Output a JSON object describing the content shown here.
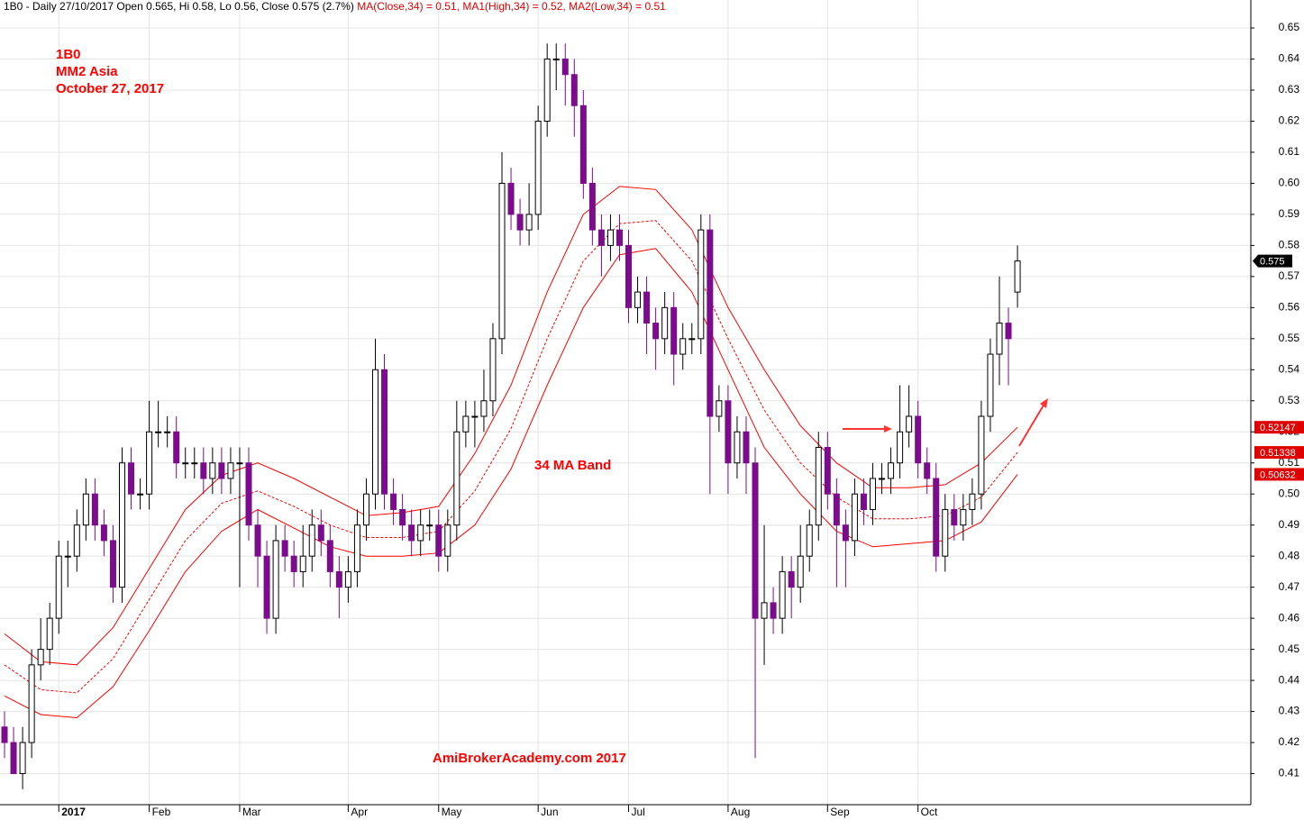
{
  "chart_data": {
    "type": "candlestick",
    "header": [
      "1B0 - Daily 27/10/2017 Open 0.565, Hi 0.58, Lo 0.56, Close 0.575 (2.7%)",
      "MA(Close,34) = 0.51,",
      "MA1(High,34) = 0.52,",
      "MA2(Low,34) = 0.51"
    ],
    "annotations": [
      "1B0",
      "MM2 Asia",
      "October 27, 2017",
      "34 MA Band",
      "AmiBrokerAcademy.com  2017"
    ],
    "xlim": [
      -0.5,
      137.8
    ],
    "xticks": [
      {
        "value": 6,
        "label": "2017"
      },
      {
        "value": 16,
        "label": "Feb"
      },
      {
        "value": 26,
        "label": "Mar"
      },
      {
        "value": 38,
        "label": "Apr"
      },
      {
        "value": 48,
        "label": "May"
      },
      {
        "value": 59,
        "label": "Jun"
      },
      {
        "value": 69,
        "label": "Jul"
      },
      {
        "value": 80,
        "label": "Aug"
      },
      {
        "value": 91,
        "label": "Sep"
      },
      {
        "value": 101,
        "label": "Oct"
      }
    ],
    "ylim": [
      0.4,
      0.659
    ],
    "yticks": [
      0.41,
      0.42,
      0.43,
      0.44,
      0.45,
      0.46,
      0.47,
      0.48,
      0.49,
      {
        "value": 0.5,
        "label": "0.50"
      },
      0.51,
      0.52,
      0.53,
      0.54,
      0.55,
      0.56,
      0.57,
      0.58,
      0.59,
      {
        "value": 0.6,
        "label": "0.60"
      },
      0.61,
      0.62,
      0.63,
      0.64,
      0.65
    ],
    "grid": true,
    "up_color": "#000000",
    "down_color": "#7b0c8c",
    "ohlc": {
      "open": [
        0.425,
        0.42,
        0.41,
        0.42,
        0.445,
        0.45,
        0.46,
        0.48,
        0.48,
        0.49,
        0.5,
        0.49,
        0.485,
        0.47,
        0.51,
        0.5,
        0.5,
        0.52,
        0.52,
        0.52,
        0.51,
        0.51,
        0.51,
        0.505,
        0.51,
        0.505,
        0.51,
        0.51,
        0.49,
        0.48,
        0.46,
        0.485,
        0.48,
        0.475,
        0.48,
        0.49,
        0.485,
        0.475,
        0.47,
        0.475,
        0.49,
        0.5,
        0.54,
        0.5,
        0.495,
        0.49,
        0.485,
        0.49,
        0.49,
        0.48,
        0.49,
        0.52,
        0.525,
        0.525,
        0.53,
        0.55,
        0.6,
        0.59,
        0.585,
        0.59,
        0.62,
        0.64,
        0.64,
        0.635,
        0.625,
        0.6,
        0.585,
        0.58,
        0.585,
        0.58,
        0.56,
        0.565,
        0.555,
        0.55,
        0.56,
        0.545,
        0.55,
        0.55,
        0.585,
        0.525,
        0.53,
        0.51,
        0.52,
        0.51,
        0.46,
        0.465,
        0.46,
        0.475,
        0.47,
        0.48,
        0.49,
        0.515,
        0.5,
        0.49,
        0.485,
        0.5,
        0.495,
        0.505,
        0.505,
        0.51,
        0.52,
        0.525,
        0.51,
        0.505,
        0.48,
        0.495,
        0.49,
        0.495,
        0.5,
        0.525,
        0.545,
        0.555,
        0.565
      ],
      "high": [
        0.43,
        0.425,
        0.425,
        0.45,
        0.46,
        0.465,
        0.485,
        0.485,
        0.495,
        0.505,
        0.505,
        0.495,
        0.49,
        0.515,
        0.515,
        0.505,
        0.53,
        0.53,
        0.525,
        0.525,
        0.515,
        0.515,
        0.515,
        0.515,
        0.515,
        0.515,
        0.515,
        0.515,
        0.495,
        0.485,
        0.49,
        0.49,
        0.485,
        0.49,
        0.495,
        0.495,
        0.49,
        0.48,
        0.48,
        0.495,
        0.505,
        0.55,
        0.545,
        0.505,
        0.5,
        0.495,
        0.495,
        0.495,
        0.495,
        0.495,
        0.53,
        0.53,
        0.53,
        0.54,
        0.555,
        0.61,
        0.605,
        0.595,
        0.6,
        0.625,
        0.645,
        0.645,
        0.645,
        0.64,
        0.63,
        0.605,
        0.59,
        0.59,
        0.59,
        0.585,
        0.57,
        0.57,
        0.56,
        0.565,
        0.565,
        0.555,
        0.555,
        0.59,
        0.59,
        0.535,
        0.535,
        0.525,
        0.525,
        0.515,
        0.49,
        0.47,
        0.48,
        0.48,
        0.49,
        0.495,
        0.52,
        0.52,
        0.505,
        0.495,
        0.505,
        0.505,
        0.51,
        0.51,
        0.515,
        0.535,
        0.535,
        0.53,
        0.515,
        0.51,
        0.5,
        0.5,
        0.5,
        0.505,
        0.53,
        0.55,
        0.57,
        0.56,
        0.58
      ],
      "low": [
        0.415,
        0.41,
        0.405,
        0.415,
        0.44,
        0.445,
        0.455,
        0.47,
        0.475,
        0.485,
        0.485,
        0.48,
        0.465,
        0.465,
        0.495,
        0.495,
        0.495,
        0.515,
        0.515,
        0.505,
        0.505,
        0.505,
        0.5,
        0.5,
        0.5,
        0.5,
        0.47,
        0.485,
        0.47,
        0.455,
        0.455,
        0.475,
        0.47,
        0.47,
        0.475,
        0.48,
        0.47,
        0.46,
        0.465,
        0.47,
        0.485,
        0.495,
        0.495,
        0.49,
        0.485,
        0.48,
        0.48,
        0.485,
        0.475,
        0.475,
        0.485,
        0.515,
        0.515,
        0.52,
        0.525,
        0.545,
        0.585,
        0.58,
        0.58,
        0.585,
        0.615,
        0.63,
        0.625,
        0.615,
        0.595,
        0.58,
        0.57,
        0.575,
        0.575,
        0.555,
        0.555,
        0.545,
        0.54,
        0.545,
        0.535,
        0.54,
        0.545,
        0.545,
        0.5,
        0.52,
        0.5,
        0.505,
        0.5,
        0.415,
        0.445,
        0.455,
        0.455,
        0.46,
        0.465,
        0.475,
        0.485,
        0.495,
        0.47,
        0.47,
        0.48,
        0.49,
        0.49,
        0.5,
        0.5,
        0.505,
        0.515,
        0.505,
        0.5,
        0.475,
        0.475,
        0.485,
        0.485,
        0.49,
        0.495,
        0.52,
        0.535,
        0.535,
        0.56
      ],
      "close": [
        0.42,
        0.41,
        0.42,
        0.445,
        0.45,
        0.46,
        0.48,
        0.48,
        0.49,
        0.5,
        0.49,
        0.485,
        0.47,
        0.51,
        0.5,
        0.5,
        0.52,
        0.52,
        0.52,
        0.51,
        0.51,
        0.51,
        0.505,
        0.51,
        0.505,
        0.51,
        0.51,
        0.49,
        0.48,
        0.46,
        0.485,
        0.48,
        0.475,
        0.48,
        0.49,
        0.485,
        0.475,
        0.47,
        0.475,
        0.49,
        0.5,
        0.54,
        0.5,
        0.495,
        0.49,
        0.485,
        0.49,
        0.49,
        0.48,
        0.49,
        0.52,
        0.525,
        0.525,
        0.53,
        0.55,
        0.6,
        0.59,
        0.585,
        0.59,
        0.62,
        0.64,
        0.64,
        0.635,
        0.625,
        0.6,
        0.585,
        0.58,
        0.585,
        0.58,
        0.56,
        0.565,
        0.555,
        0.55,
        0.56,
        0.545,
        0.55,
        0.55,
        0.585,
        0.525,
        0.53,
        0.51,
        0.52,
        0.51,
        0.46,
        0.465,
        0.46,
        0.475,
        0.47,
        0.48,
        0.49,
        0.515,
        0.5,
        0.49,
        0.485,
        0.5,
        0.495,
        0.505,
        0.505,
        0.51,
        0.52,
        0.525,
        0.51,
        0.505,
        0.48,
        0.495,
        0.49,
        0.495,
        0.5,
        0.525,
        0.545,
        0.555,
        0.55,
        0.575
      ],
      "last_label": "0.575"
    },
    "ma_x": [
      0,
      4,
      8,
      12,
      16,
      20,
      24,
      28,
      32,
      36,
      40,
      44,
      48,
      52,
      56,
      60,
      64,
      68,
      72,
      76,
      80,
      84,
      88,
      92,
      96,
      100,
      104,
      108,
      112
    ],
    "series": [
      {
        "color": "#ff0000",
        "dashed": false,
        "last_label": "0.52147",
        "values": [
          0.455,
          0.446,
          0.445,
          0.457,
          0.476,
          0.495,
          0.506,
          0.51,
          0.505,
          0.499,
          0.493,
          0.494,
          0.496,
          0.513,
          0.535,
          0.565,
          0.59,
          0.599,
          0.598,
          0.585,
          0.56,
          0.54,
          0.522,
          0.51,
          0.502,
          0.502,
          0.503,
          0.51,
          0.52147
        ]
      },
      {
        "color": "#ff0000",
        "dashed": true,
        "last_label": "0.51338",
        "values": [
          0.445,
          0.437,
          0.436,
          0.447,
          0.466,
          0.485,
          0.497,
          0.501,
          0.496,
          0.49,
          0.486,
          0.486,
          0.488,
          0.501,
          0.521,
          0.55,
          0.575,
          0.587,
          0.588,
          0.575,
          0.55,
          0.527,
          0.51,
          0.499,
          0.492,
          0.492,
          0.493,
          0.499,
          0.51338
        ]
      },
      {
        "color": "#ff0000",
        "dashed": false,
        "last_label": "0.50632",
        "values": [
          0.435,
          0.429,
          0.428,
          0.438,
          0.456,
          0.475,
          0.488,
          0.495,
          0.489,
          0.483,
          0.48,
          0.48,
          0.481,
          0.49,
          0.508,
          0.535,
          0.56,
          0.577,
          0.579,
          0.565,
          0.54,
          0.515,
          0.5,
          0.488,
          0.483,
          0.484,
          0.485,
          0.491,
          0.50632
        ]
      }
    ]
  }
}
